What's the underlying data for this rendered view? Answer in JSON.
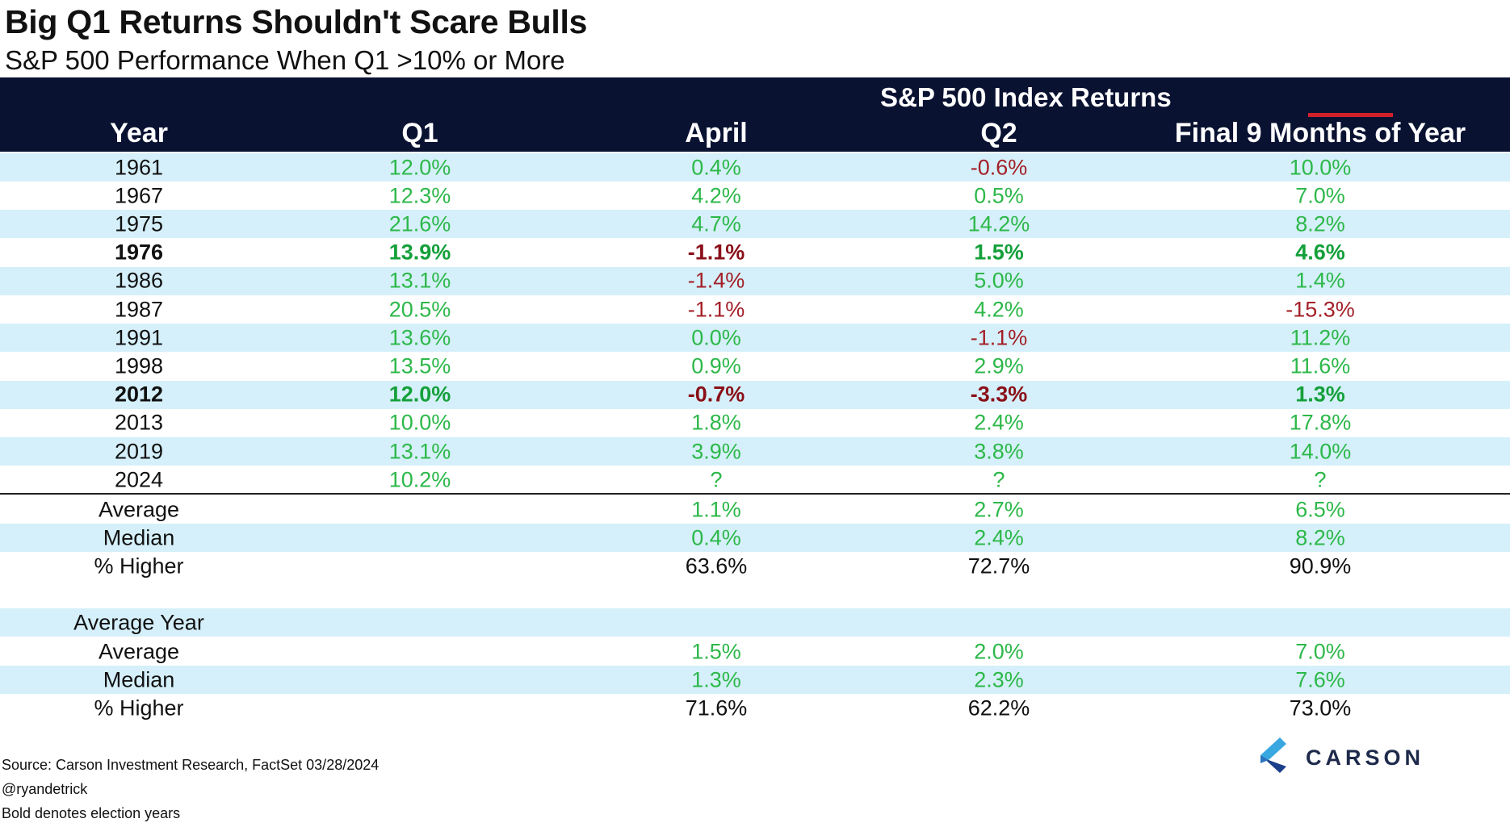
{
  "title": "Big Q1 Returns Shouldn't Scare Bulls",
  "subtitle": "S&P 500 Performance When Q1 >10% or More",
  "header": {
    "group_title": "S&P 500 Index Returns",
    "columns": [
      "Year",
      "Q1",
      "April",
      "Q2",
      "Final 9 Months of Year"
    ]
  },
  "chart_data": {
    "type": "table",
    "title": "Big Q1 Returns Shouldn't Scare Bulls",
    "subtitle": "S&P 500 Performance When Q1 >10% or More",
    "columns": [
      "Year",
      "Q1",
      "April",
      "Q2",
      "Final 9 Months of Year"
    ],
    "rows": [
      {
        "year": "1961",
        "q1": "12.0%",
        "april": "0.4%",
        "q2": "-0.6%",
        "final9": "10.0%",
        "election_year": false
      },
      {
        "year": "1967",
        "q1": "12.3%",
        "april": "4.2%",
        "q2": "0.5%",
        "final9": "7.0%",
        "election_year": false
      },
      {
        "year": "1975",
        "q1": "21.6%",
        "april": "4.7%",
        "q2": "14.2%",
        "final9": "8.2%",
        "election_year": false
      },
      {
        "year": "1976",
        "q1": "13.9%",
        "april": "-1.1%",
        "q2": "1.5%",
        "final9": "4.6%",
        "election_year": true
      },
      {
        "year": "1986",
        "q1": "13.1%",
        "april": "-1.4%",
        "q2": "5.0%",
        "final9": "1.4%",
        "election_year": false
      },
      {
        "year": "1987",
        "q1": "20.5%",
        "april": "-1.1%",
        "q2": "4.2%",
        "final9": "-15.3%",
        "election_year": false
      },
      {
        "year": "1991",
        "q1": "13.6%",
        "april": "0.0%",
        "q2": "-1.1%",
        "final9": "11.2%",
        "election_year": false
      },
      {
        "year": "1998",
        "q1": "13.5%",
        "april": "0.9%",
        "q2": "2.9%",
        "final9": "11.6%",
        "election_year": false
      },
      {
        "year": "2012",
        "q1": "12.0%",
        "april": "-0.7%",
        "q2": "-3.3%",
        "final9": "1.3%",
        "election_year": true
      },
      {
        "year": "2013",
        "q1": "10.0%",
        "april": "1.8%",
        "q2": "2.4%",
        "final9": "17.8%",
        "election_year": false
      },
      {
        "year": "2019",
        "q1": "13.1%",
        "april": "3.9%",
        "q2": "3.8%",
        "final9": "14.0%",
        "election_year": false
      },
      {
        "year": "2024",
        "q1": "10.2%",
        "april": "?",
        "q2": "?",
        "final9": "?",
        "election_year": false
      }
    ],
    "summary": [
      {
        "label": "Average",
        "april": "1.1%",
        "q2": "2.7%",
        "final9": "6.5%"
      },
      {
        "label": "Median",
        "april": "0.4%",
        "q2": "2.4%",
        "final9": "8.2%"
      },
      {
        "label": "% Higher",
        "april": "63.6%",
        "q2": "72.7%",
        "final9": "90.9%"
      }
    ],
    "average_year": {
      "label": "Average Year",
      "rows": [
        {
          "label": "Average",
          "april": "1.5%",
          "q2": "2.0%",
          "final9": "7.0%"
        },
        {
          "label": "Median",
          "april": "1.3%",
          "q2": "2.3%",
          "final9": "7.6%"
        },
        {
          "label": "% Higher",
          "april": "71.6%",
          "q2": "62.2%",
          "final9": "73.0%"
        }
      ]
    }
  },
  "footer": {
    "source": "Source: Carson Investment Research, FactSet 03/28/2024",
    "handle": "@ryandetrick",
    "note": "Bold denotes election years"
  },
  "logo": {
    "text": "CARSON"
  },
  "colors": {
    "header_bg": "#0a1232",
    "row_shade": "#d5f0fa",
    "positive": "#2db84a",
    "negative": "#a32028",
    "accent_red": "#d2202a"
  }
}
